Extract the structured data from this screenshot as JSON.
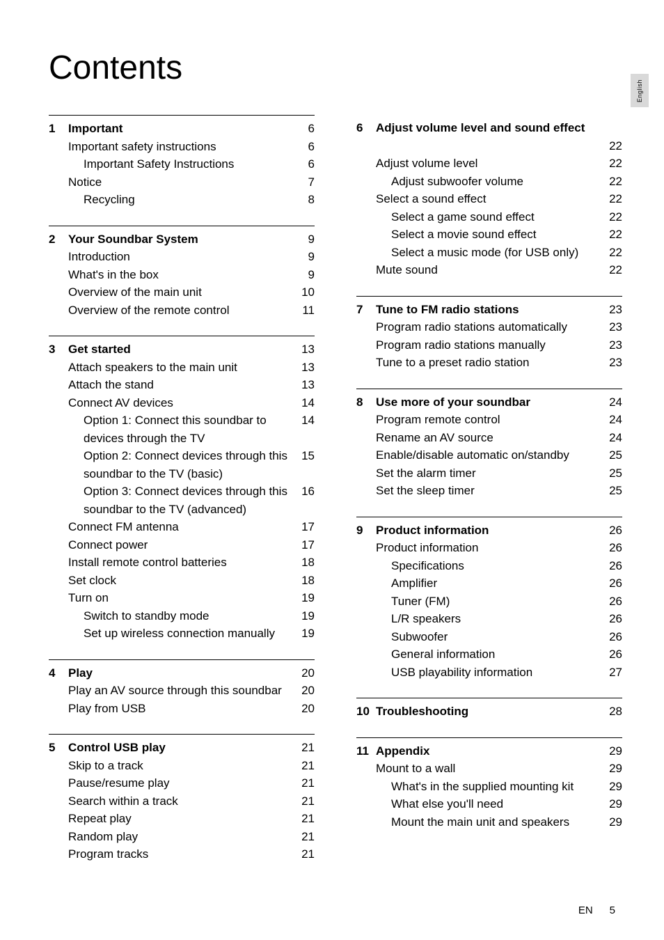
{
  "title": "Contents",
  "lang_tab": "English",
  "footer": {
    "lang_code": "EN",
    "page_num": "5"
  },
  "colors": {
    "text": "#000000",
    "background": "#ffffff",
    "tab_bg": "#d9d9d9",
    "rule": "#000000"
  },
  "typography": {
    "title_fontsize_pt": 36,
    "body_fontsize_pt": 13,
    "font_family": "Gill Sans"
  },
  "left_col": [
    {
      "num": "1",
      "entries": [
        {
          "level": 1,
          "text": "Important",
          "page": "6"
        },
        {
          "level": 2,
          "text": "Important safety instructions",
          "page": "6"
        },
        {
          "level": 3,
          "text": "Important Safety Instructions",
          "page": "6"
        },
        {
          "level": 2,
          "text": "Notice",
          "page": "7"
        },
        {
          "level": 3,
          "text": "Recycling",
          "page": "8"
        }
      ]
    },
    {
      "num": "2",
      "entries": [
        {
          "level": 1,
          "text": "Your Soundbar System",
          "page": "9"
        },
        {
          "level": 2,
          "text": "Introduction",
          "page": "9"
        },
        {
          "level": 2,
          "text": "What's in the box",
          "page": "9"
        },
        {
          "level": 2,
          "text": "Overview of the main unit",
          "page": "10"
        },
        {
          "level": 2,
          "text": "Overview of the remote control",
          "page": "11"
        }
      ]
    },
    {
      "num": "3",
      "entries": [
        {
          "level": 1,
          "text": "Get started",
          "page": "13"
        },
        {
          "level": 2,
          "text": "Attach speakers to the main unit",
          "page": "13"
        },
        {
          "level": 2,
          "text": "Attach the stand",
          "page": "13"
        },
        {
          "level": 2,
          "text": "Connect AV devices",
          "page": "14"
        },
        {
          "level": 3,
          "text": "Option 1: Connect this soundbar to devices through the TV",
          "page": "14"
        },
        {
          "level": 3,
          "text": "Option 2: Connect devices through this soundbar to the TV (basic)",
          "page": "15"
        },
        {
          "level": 3,
          "text": "Option 3: Connect devices through this soundbar to the TV (advanced)",
          "page": "16"
        },
        {
          "level": 2,
          "text": "Connect FM antenna",
          "page": "17"
        },
        {
          "level": 2,
          "text": "Connect power",
          "page": "17"
        },
        {
          "level": 2,
          "text": "Install remote control batteries",
          "page": "18"
        },
        {
          "level": 2,
          "text": "Set clock",
          "page": "18"
        },
        {
          "level": 2,
          "text": "Turn on",
          "page": "19"
        },
        {
          "level": 3,
          "text": "Switch to standby mode",
          "page": "19"
        },
        {
          "level": 3,
          "text": "Set up wireless connection manually",
          "page": "19"
        }
      ]
    },
    {
      "num": "4",
      "entries": [
        {
          "level": 1,
          "text": "Play",
          "page": "20"
        },
        {
          "level": 2,
          "text": "Play an AV source through this soundbar",
          "page": "20"
        },
        {
          "level": 2,
          "text": "Play from USB",
          "page": "20"
        }
      ]
    },
    {
      "num": "5",
      "entries": [
        {
          "level": 1,
          "text": "Control USB play",
          "page": "21"
        },
        {
          "level": 2,
          "text": "Skip to a track",
          "page": "21"
        },
        {
          "level": 2,
          "text": "Pause/resume play",
          "page": "21"
        },
        {
          "level": 2,
          "text": "Search within a track",
          "page": "21"
        },
        {
          "level": 2,
          "text": "Repeat play",
          "page": "21"
        },
        {
          "level": 2,
          "text": "Random play",
          "page": "21"
        },
        {
          "level": 2,
          "text": "Program tracks",
          "page": "21"
        }
      ]
    }
  ],
  "right_col": [
    {
      "num": "6",
      "no_top_border": true,
      "entries": [
        {
          "level": 1,
          "text": "Adjust volume level and sound effect",
          "page": "22"
        },
        {
          "level": 2,
          "text": "Adjust volume level",
          "page": "22"
        },
        {
          "level": 3,
          "text": "Adjust subwoofer volume",
          "page": "22"
        },
        {
          "level": 2,
          "text": "Select a sound effect",
          "page": "22"
        },
        {
          "level": 3,
          "text": "Select a game sound effect",
          "page": "22"
        },
        {
          "level": 3,
          "text": "Select a movie sound effect",
          "page": "22"
        },
        {
          "level": 3,
          "text": "Select a music mode (for USB only)",
          "page": "22"
        },
        {
          "level": 2,
          "text": "Mute sound",
          "page": "22"
        }
      ]
    },
    {
      "num": "7",
      "entries": [
        {
          "level": 1,
          "text": "Tune to FM radio stations",
          "page": "23"
        },
        {
          "level": 2,
          "text": "Program radio stations automatically",
          "page": "23"
        },
        {
          "level": 2,
          "text": "Program radio stations manually",
          "page": "23"
        },
        {
          "level": 2,
          "text": "Tune to a preset radio station",
          "page": "23"
        }
      ]
    },
    {
      "num": "8",
      "entries": [
        {
          "level": 1,
          "text": "Use more of your soundbar",
          "page": "24"
        },
        {
          "level": 2,
          "text": "Program remote control",
          "page": "24"
        },
        {
          "level": 2,
          "text": "Rename an AV source",
          "page": "24"
        },
        {
          "level": 2,
          "text": "Enable/disable automatic on/standby",
          "page": "25"
        },
        {
          "level": 2,
          "text": "Set the alarm timer",
          "page": "25"
        },
        {
          "level": 2,
          "text": "Set the sleep timer",
          "page": "25"
        }
      ]
    },
    {
      "num": "9",
      "entries": [
        {
          "level": 1,
          "text": "Product information",
          "page": "26"
        },
        {
          "level": 2,
          "text": "Product information",
          "page": "26"
        },
        {
          "level": 3,
          "text": "Specifications",
          "page": "26"
        },
        {
          "level": 3,
          "text": "Amplifier",
          "page": "26"
        },
        {
          "level": 3,
          "text": "Tuner (FM)",
          "page": "26"
        },
        {
          "level": 3,
          "text": "L/R speakers",
          "page": "26"
        },
        {
          "level": 3,
          "text": "Subwoofer",
          "page": "26"
        },
        {
          "level": 3,
          "text": "General information",
          "page": "26"
        },
        {
          "level": 3,
          "text": "USB playability information",
          "page": "27"
        }
      ]
    },
    {
      "num": "10",
      "entries": [
        {
          "level": 1,
          "text": "Troubleshooting",
          "page": "28"
        }
      ]
    },
    {
      "num": "11",
      "entries": [
        {
          "level": 1,
          "text": "Appendix",
          "page": "29"
        },
        {
          "level": 2,
          "text": "Mount to a wall",
          "page": "29"
        },
        {
          "level": 3,
          "text": "What's in the supplied mounting kit",
          "page": "29"
        },
        {
          "level": 3,
          "text": "What else you'll need",
          "page": "29"
        },
        {
          "level": 3,
          "text": "Mount the main unit and speakers",
          "page": "29"
        }
      ]
    }
  ]
}
